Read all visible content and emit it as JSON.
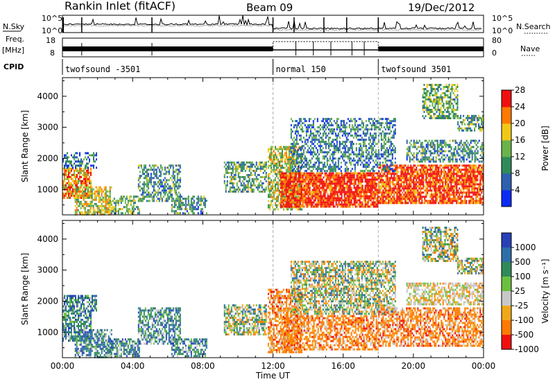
{
  "header": {
    "title": "Rankin Inlet (fitACF)",
    "beam": "Beam 09",
    "date": "19/Dec/2012"
  },
  "top_panels": {
    "nsky_label": "N.Sky",
    "nsearch_label": "N.Search",
    "noise_ticks_left": [
      "10^5",
      "10^0"
    ],
    "noise_ticks_right": [
      "10^5",
      "10^0"
    ],
    "freq_label_line1": "Freq.",
    "freq_label_line2": "[MHz]",
    "freq_ticks": [
      "18",
      "8"
    ],
    "nave_label": "Nave",
    "nave_ticks": [
      "80",
      "0"
    ],
    "cpid_label": "CPID",
    "cpid_segments": [
      {
        "label": "twofsound -3501",
        "start": 0,
        "end": 12
      },
      {
        "label": "normal 150",
        "start": 12,
        "end": 18
      },
      {
        "label": "twofsound 3501",
        "start": 18,
        "end": 24
      }
    ]
  },
  "chart_data": [
    {
      "type": "heatmap",
      "title": "",
      "xlabel": "",
      "ylabel": "Slant Range [km]",
      "xlim": [
        0,
        24
      ],
      "ylim": [
        180,
        4600
      ],
      "y_ticks": [
        "1000",
        "2000",
        "3000",
        "4000"
      ],
      "colorbar": {
        "label": "Power [dB]",
        "ticks": [
          "4",
          "8",
          "12",
          "16",
          "20",
          "24",
          "28"
        ],
        "colors": [
          "#0a2cf5",
          "#2e5fb0",
          "#2f8a5a",
          "#6bb34a",
          "#f0c818",
          "#ff7a00",
          "#f01010"
        ]
      },
      "regions": [
        {
          "x": [
            0.0,
            1.6
          ],
          "y": [
            700,
            1700
          ],
          "level": 0.75
        },
        {
          "x": [
            0.7,
            2.8
          ],
          "y": [
            200,
            1100
          ],
          "level": 0.6
        },
        {
          "x": [
            0.0,
            1.9
          ],
          "y": [
            1700,
            2200
          ],
          "level": 0.25
        },
        {
          "x": [
            2.6,
            4.4
          ],
          "y": [
            200,
            800
          ],
          "level": 0.45
        },
        {
          "x": [
            4.3,
            6.7
          ],
          "y": [
            600,
            1800
          ],
          "level": 0.35
        },
        {
          "x": [
            6.2,
            8.2
          ],
          "y": [
            200,
            800
          ],
          "level": 0.35
        },
        {
          "x": [
            9.2,
            11.6
          ],
          "y": [
            900,
            1900
          ],
          "level": 0.4
        },
        {
          "x": [
            11.7,
            13.6
          ],
          "y": [
            350,
            2400
          ],
          "level": 0.55
        },
        {
          "x": [
            12.4,
            18.0
          ],
          "y": [
            450,
            1550
          ],
          "level": 0.92
        },
        {
          "x": [
            18.0,
            24.0
          ],
          "y": [
            550,
            1800
          ],
          "level": 0.88
        },
        {
          "x": [
            13.0,
            19.0
          ],
          "y": [
            1600,
            3300
          ],
          "level": 0.3
        },
        {
          "x": [
            19.6,
            24.0
          ],
          "y": [
            1900,
            2600
          ],
          "level": 0.35
        },
        {
          "x": [
            20.5,
            22.5
          ],
          "y": [
            3300,
            4400
          ],
          "level": 0.45
        },
        {
          "x": [
            22.5,
            24.0
          ],
          "y": [
            2900,
            3400
          ],
          "level": 0.4
        }
      ]
    },
    {
      "type": "heatmap",
      "title": "",
      "xlabel": "Time UT",
      "ylabel": "Slant Range [km]",
      "xlim": [
        0,
        24
      ],
      "ylim": [
        180,
        4600
      ],
      "x_ticks": [
        "00:00",
        "04:00",
        "08:00",
        "12:00",
        "16:00",
        "20:00",
        "00:00"
      ],
      "y_ticks": [
        "1000",
        "2000",
        "3000",
        "4000"
      ],
      "colorbar": {
        "label": "Velocity [m s⁻¹]",
        "ticks": [
          "1000",
          "500",
          "100",
          "25",
          "-25",
          "-100",
          "-500",
          "-1000"
        ],
        "colors": [
          "#2840b8",
          "#2e6ea8",
          "#2f8a5a",
          "#6cc040",
          "#c8c8c8",
          "#f0a818",
          "#ff7a00",
          "#f01010"
        ]
      },
      "regions": [
        {
          "x": [
            0.0,
            1.6
          ],
          "y": [
            700,
            1700
          ],
          "palette": "mix-blue-green"
        },
        {
          "x": [
            0.7,
            2.8
          ],
          "y": [
            200,
            1100
          ],
          "palette": "mix-blue-green"
        },
        {
          "x": [
            0.0,
            1.9
          ],
          "y": [
            1700,
            2200
          ],
          "palette": "mix-blue-green"
        },
        {
          "x": [
            2.6,
            4.4
          ],
          "y": [
            200,
            800
          ],
          "palette": "mix-blue-green"
        },
        {
          "x": [
            4.3,
            6.7
          ],
          "y": [
            600,
            1800
          ],
          "palette": "mix-blue-green"
        },
        {
          "x": [
            6.2,
            8.2
          ],
          "y": [
            200,
            800
          ],
          "palette": "mix-blue-green"
        },
        {
          "x": [
            9.2,
            11.6
          ],
          "y": [
            900,
            1900
          ],
          "palette": "mix-orange-green"
        },
        {
          "x": [
            11.7,
            13.6
          ],
          "y": [
            350,
            2400
          ],
          "palette": "orange"
        },
        {
          "x": [
            12.4,
            18.0
          ],
          "y": [
            450,
            1550
          ],
          "palette": "orange"
        },
        {
          "x": [
            18.0,
            24.0
          ],
          "y": [
            550,
            1800
          ],
          "palette": "orange"
        },
        {
          "x": [
            13.0,
            19.0
          ],
          "y": [
            1600,
            3300
          ],
          "palette": "mix-orange-green"
        },
        {
          "x": [
            19.6,
            24.0
          ],
          "y": [
            1900,
            2600
          ],
          "palette": "grey"
        },
        {
          "x": [
            20.5,
            22.5
          ],
          "y": [
            3300,
            4400
          ],
          "palette": "mix-orange-green"
        },
        {
          "x": [
            22.5,
            24.0
          ],
          "y": [
            2900,
            3400
          ],
          "palette": "mix-orange-green"
        }
      ]
    }
  ]
}
